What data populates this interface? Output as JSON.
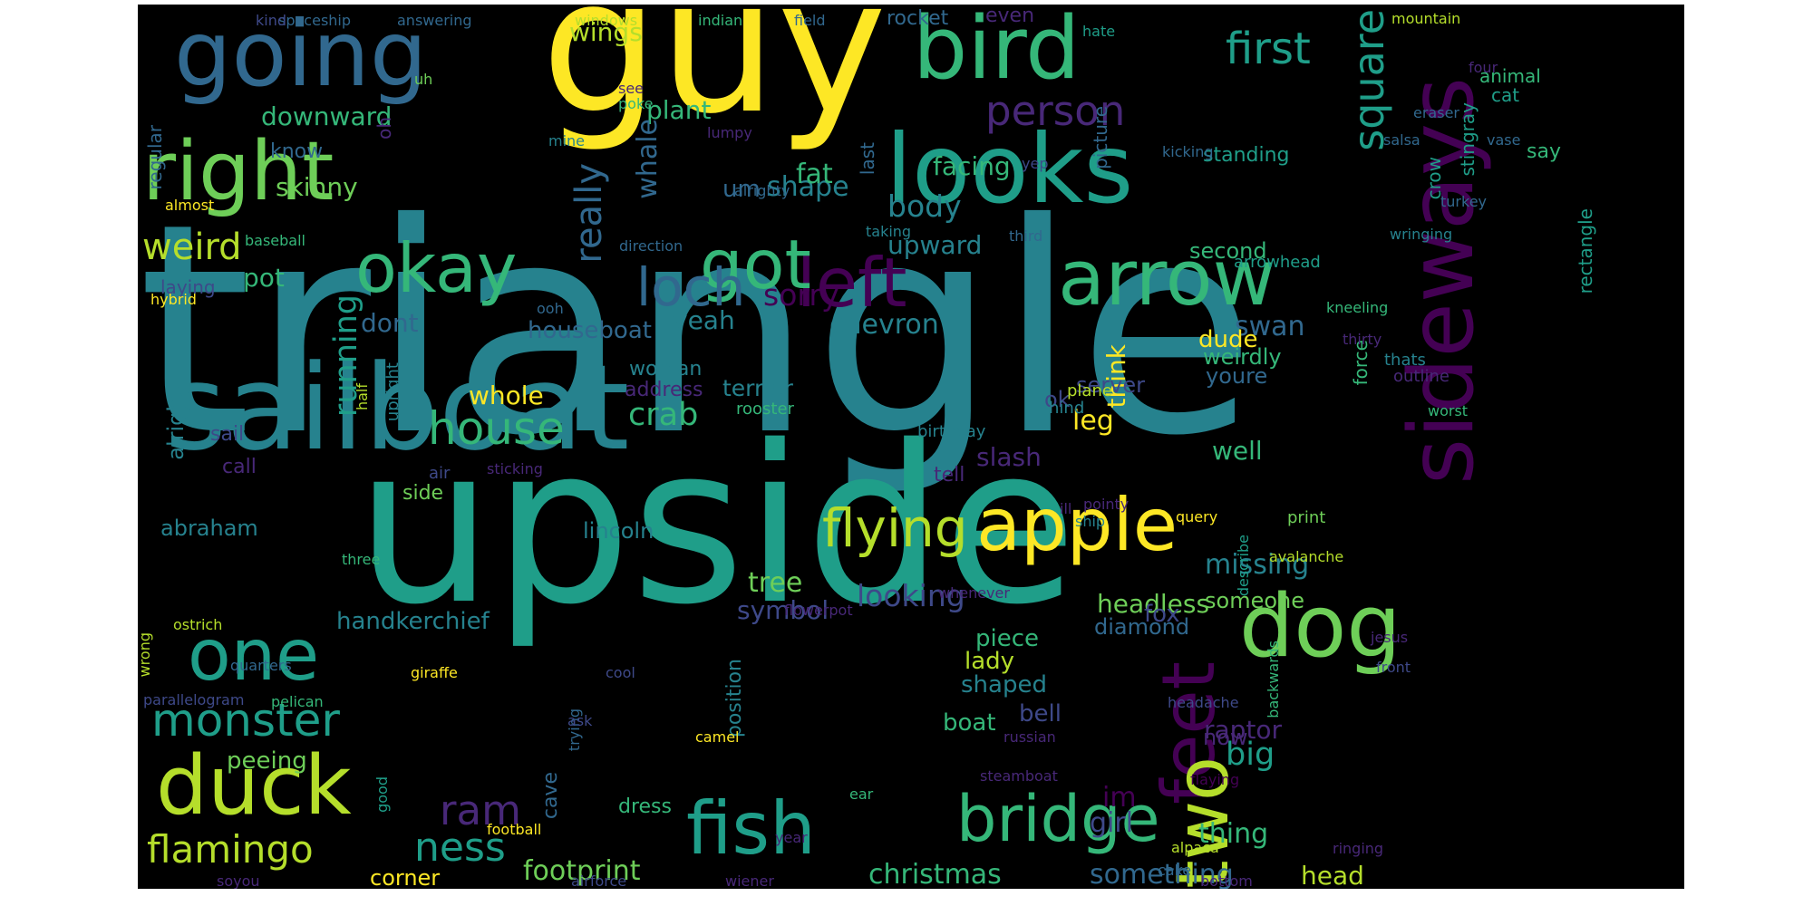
{
  "background": "#000000",
  "palette": [
    "#440154",
    "#482878",
    "#3e4989",
    "#31688e",
    "#26828e",
    "#1f9e89",
    "#35b779",
    "#6ece58",
    "#b5de2b",
    "#fde725"
  ],
  "words": [
    "triangle",
    "upside",
    "guy",
    "sailboat",
    "sideways",
    "looks",
    "going",
    "bird",
    "right",
    "apple",
    "dog",
    "feet",
    "arrow",
    "left",
    "got",
    "okay",
    "duck",
    "fish",
    "bridge",
    "two",
    "one",
    "monster",
    "loch",
    "flying",
    "square",
    "really",
    "house",
    "first",
    "person",
    "flamingo",
    "ness",
    "weird",
    "footprint",
    "christmas",
    "running",
    "ram",
    "crab",
    "wings",
    "downward",
    "shape",
    "body",
    "fat",
    "plant",
    "whale",
    "skinny",
    "facing",
    "pot",
    "upward",
    "sorry",
    "chevron",
    "missing",
    "looking",
    "tree",
    "symbol",
    "headless",
    "someone",
    "diamond",
    "head",
    "something",
    "big",
    "thing",
    "raptor",
    "girl",
    "im",
    "leg",
    "think",
    "slash",
    "well",
    "whole",
    "terrier",
    "swan",
    "dude",
    "weirdly",
    "youre",
    "second",
    "dont",
    "laying",
    "houseboat",
    "yeah",
    "woman",
    "address",
    "lincoln",
    "abraham",
    "handkerchief",
    "boat",
    "shaped",
    "piece",
    "lady",
    "bell",
    "position",
    "peeing",
    "corner",
    "dress",
    "cave",
    "now",
    "fox",
    "tell",
    "call",
    "side",
    "sail",
    "air",
    "alright",
    "server",
    "standing",
    "say",
    "cat",
    "animal",
    "crow",
    "stingray",
    "rocket",
    "even",
    "know",
    "oh",
    "um",
    "regular",
    "last",
    "picture",
    "ok",
    "force",
    "rectangle",
    "hybrid",
    "almost",
    "baseball",
    "direction",
    "third",
    "wringing",
    "arrowhead",
    "kneeling",
    "thirty",
    "thats",
    "outline",
    "plane",
    "hind",
    "rooster",
    "birthday",
    "pointy",
    "ship",
    "sticking",
    "ill",
    "avalanche",
    "print",
    "query",
    "worst",
    "three",
    "whenever",
    "flowerpot",
    "ostrich",
    "quarters",
    "giraffe",
    "cool",
    "parallelogram",
    "wrong",
    "pelican",
    "trying",
    "backwards",
    "describe",
    "jesus",
    "front",
    "ask",
    "headache",
    "camel",
    "russian",
    "steamboat",
    "flaying",
    "ear",
    "year",
    "football",
    "alpaca",
    "ringing",
    "cake",
    "bottom",
    "airforce",
    "wiener",
    "soyou",
    "good",
    "half",
    "upright",
    "mine",
    "lumpy",
    "alrighty",
    "taking",
    "yep",
    "kicking",
    "salsa",
    "vase",
    "turkey",
    "four",
    "eraser",
    "mountain",
    "hate",
    "field",
    "indian",
    "windows",
    "answering",
    "spaceship",
    "kind",
    "see",
    "poke",
    "uh",
    "ooh",
    "headless"
  ]
}
